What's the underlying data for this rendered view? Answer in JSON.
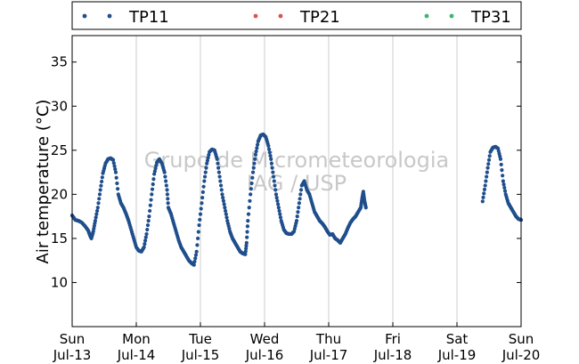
{
  "chart_data": {
    "type": "scatter",
    "ylabel": "Air temperature (°C)",
    "xlabel": "",
    "ylim": [
      5,
      38
    ],
    "xlim": [
      0,
      7
    ],
    "yticks": [
      10,
      15,
      20,
      25,
      30,
      35
    ],
    "xticks": [
      {
        "day": "Sun",
        "date": "Jul-13"
      },
      {
        "day": "Mon",
        "date": "Jul-14"
      },
      {
        "day": "Tue",
        "date": "Jul-15"
      },
      {
        "day": "Wed",
        "date": "Jul-16"
      },
      {
        "day": "Thu",
        "date": "Jul-17"
      },
      {
        "day": "Fri",
        "date": "Jul-18"
      },
      {
        "day": "Sat",
        "date": "Jul-19"
      },
      {
        "day": "Sun",
        "date": "Jul-20"
      }
    ],
    "grid": "vertical",
    "legend_position": "top",
    "watermark": [
      "Grupo de Micrometeorologia",
      "IAG / USP"
    ],
    "series": [
      {
        "name": "TP11",
        "color": "#1f4e8c",
        "points": [
          [
            0.0,
            17.6
          ],
          [
            0.05,
            17.1
          ],
          [
            0.1,
            17.0
          ],
          [
            0.15,
            16.8
          ],
          [
            0.2,
            16.4
          ],
          [
            0.25,
            15.9
          ],
          [
            0.28,
            15.3
          ],
          [
            0.3,
            15.0
          ],
          [
            0.33,
            15.8
          ],
          [
            0.36,
            17.0
          ],
          [
            0.4,
            18.5
          ],
          [
            0.44,
            20.5
          ],
          [
            0.48,
            22.4
          ],
          [
            0.52,
            23.5
          ],
          [
            0.56,
            24.0
          ],
          [
            0.6,
            24.1
          ],
          [
            0.64,
            23.9
          ],
          [
            0.68,
            22.5
          ],
          [
            0.72,
            20.0
          ],
          [
            0.76,
            19.0
          ],
          [
            0.8,
            18.5
          ],
          [
            0.84,
            17.8
          ],
          [
            0.88,
            17.0
          ],
          [
            0.92,
            16.0
          ],
          [
            0.96,
            15.0
          ],
          [
            1.0,
            14.0
          ],
          [
            1.04,
            13.6
          ],
          [
            1.08,
            13.5
          ],
          [
            1.12,
            14.0
          ],
          [
            1.16,
            15.5
          ],
          [
            1.2,
            17.5
          ],
          [
            1.24,
            20.0
          ],
          [
            1.28,
            22.3
          ],
          [
            1.32,
            23.6
          ],
          [
            1.36,
            24.0
          ],
          [
            1.4,
            23.5
          ],
          [
            1.44,
            22.5
          ],
          [
            1.48,
            20.5
          ],
          [
            1.5,
            18.5
          ],
          [
            1.54,
            17.8
          ],
          [
            1.58,
            16.8
          ],
          [
            1.62,
            15.8
          ],
          [
            1.66,
            14.8
          ],
          [
            1.7,
            14.0
          ],
          [
            1.74,
            13.5
          ],
          [
            1.78,
            13.0
          ],
          [
            1.82,
            12.5
          ],
          [
            1.86,
            12.2
          ],
          [
            1.9,
            12.0
          ],
          [
            1.94,
            13.5
          ],
          [
            1.98,
            16.5
          ],
          [
            2.02,
            19.0
          ],
          [
            2.06,
            21.5
          ],
          [
            2.1,
            23.5
          ],
          [
            2.14,
            24.8
          ],
          [
            2.18,
            25.1
          ],
          [
            2.22,
            25.0
          ],
          [
            2.26,
            24.0
          ],
          [
            2.3,
            22.0
          ],
          [
            2.34,
            20.0
          ],
          [
            2.38,
            18.5
          ],
          [
            2.42,
            17.0
          ],
          [
            2.46,
            15.8
          ],
          [
            2.5,
            15.0
          ],
          [
            2.54,
            14.5
          ],
          [
            2.58,
            14.0
          ],
          [
            2.62,
            13.5
          ],
          [
            2.66,
            13.3
          ],
          [
            2.7,
            13.2
          ],
          [
            2.72,
            14.5
          ],
          [
            2.74,
            17.0
          ],
          [
            2.78,
            20.0
          ],
          [
            2.82,
            22.5
          ],
          [
            2.86,
            24.5
          ],
          [
            2.9,
            26.0
          ],
          [
            2.94,
            26.7
          ],
          [
            2.98,
            26.8
          ],
          [
            3.02,
            26.5
          ],
          [
            3.06,
            25.5
          ],
          [
            3.1,
            24.0
          ],
          [
            3.14,
            22.0
          ],
          [
            3.18,
            20.0
          ],
          [
            3.22,
            18.5
          ],
          [
            3.26,
            17.0
          ],
          [
            3.3,
            16.0
          ],
          [
            3.34,
            15.6
          ],
          [
            3.38,
            15.5
          ],
          [
            3.42,
            15.5
          ],
          [
            3.46,
            15.8
          ],
          [
            3.5,
            17.0
          ],
          [
            3.54,
            19.0
          ],
          [
            3.58,
            21.0
          ],
          [
            3.62,
            21.5
          ],
          [
            3.66,
            20.5
          ],
          [
            3.7,
            20.0
          ],
          [
            3.74,
            19.0
          ],
          [
            3.78,
            18.0
          ],
          [
            3.82,
            17.5
          ],
          [
            3.86,
            17.0
          ],
          [
            3.9,
            16.7
          ],
          [
            3.94,
            16.3
          ],
          [
            3.98,
            15.8
          ],
          [
            4.02,
            15.4
          ],
          [
            4.06,
            15.5
          ],
          [
            4.1,
            15.0
          ],
          [
            4.14,
            14.8
          ],
          [
            4.18,
            14.5
          ],
          [
            4.22,
            15.0
          ],
          [
            4.26,
            15.5
          ],
          [
            4.3,
            16.2
          ],
          [
            4.34,
            16.8
          ],
          [
            4.38,
            17.2
          ],
          [
            4.42,
            17.5
          ],
          [
            4.46,
            18.0
          ],
          [
            4.5,
            18.5
          ],
          [
            4.52,
            19.5
          ],
          [
            4.54,
            20.3
          ],
          [
            4.56,
            19.2
          ],
          [
            4.58,
            18.5
          ],
          [
            6.4,
            19.2
          ],
          [
            6.44,
            21.0
          ],
          [
            6.48,
            23.0
          ],
          [
            6.52,
            24.8
          ],
          [
            6.56,
            25.3
          ],
          [
            6.6,
            25.4
          ],
          [
            6.64,
            25.2
          ],
          [
            6.68,
            24.0
          ],
          [
            6.72,
            21.5
          ],
          [
            6.76,
            20.0
          ],
          [
            6.8,
            19.0
          ],
          [
            6.84,
            18.5
          ],
          [
            6.88,
            18.0
          ],
          [
            6.92,
            17.5
          ],
          [
            6.96,
            17.2
          ],
          [
            7.0,
            17.1
          ]
        ]
      },
      {
        "name": "TP21",
        "color": "#d9534f",
        "points": []
      },
      {
        "name": "TP31",
        "color": "#3cb371",
        "points": []
      }
    ]
  }
}
